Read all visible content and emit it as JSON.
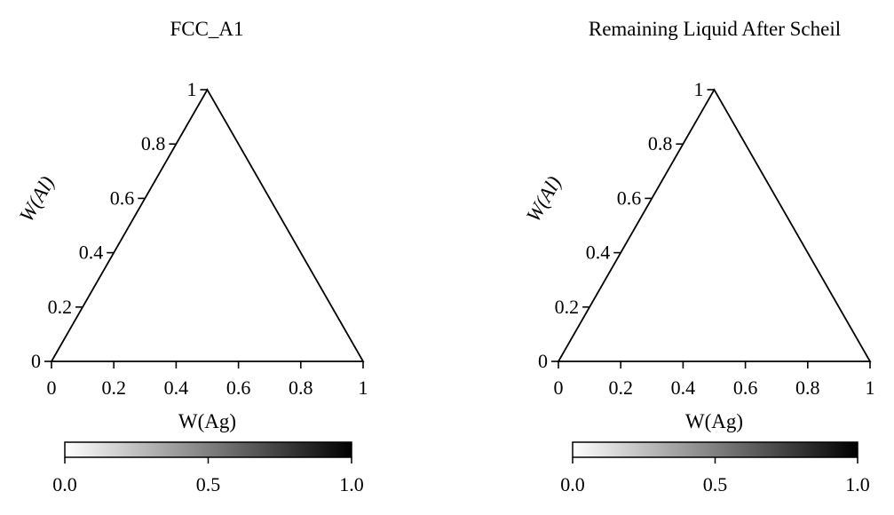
{
  "chart_data": [
    {
      "type": "ternary",
      "title": "FCC_A1",
      "xlabel": "W(Ag)",
      "ylabel": "W(Al)",
      "xlim": [
        0,
        1
      ],
      "ylim": [
        0,
        1
      ],
      "x_ticks": [
        "0",
        "0.2",
        "0.4",
        "0.6",
        "0.8",
        "1"
      ],
      "y_ticks": [
        "0",
        "0.2",
        "0.4",
        "0.6",
        "0.8",
        "1"
      ],
      "points": [],
      "colorbar": {
        "orientation": "horizontal",
        "range": [
          0.0,
          1.0
        ],
        "ticks": [
          "0.0",
          "0.5",
          "1.0"
        ],
        "colormap": "white-to-black",
        "color_low": "#ffffff",
        "color_high": "#000000"
      }
    },
    {
      "type": "ternary",
      "title": "Remaining Liquid After Scheil",
      "xlabel": "W(Ag)",
      "ylabel": "W(Al)",
      "xlim": [
        0,
        1
      ],
      "ylim": [
        0,
        1
      ],
      "x_ticks": [
        "0",
        "0.2",
        "0.4",
        "0.6",
        "0.8",
        "1"
      ],
      "y_ticks": [
        "0",
        "0.2",
        "0.4",
        "0.6",
        "0.8",
        "1"
      ],
      "points": [],
      "colorbar": {
        "orientation": "horizontal",
        "range": [
          0.0,
          1.0
        ],
        "ticks": [
          "0.0",
          "0.5",
          "1.0"
        ],
        "colormap": "white-to-black",
        "color_low": "#ffffff",
        "color_high": "#000000"
      }
    }
  ]
}
